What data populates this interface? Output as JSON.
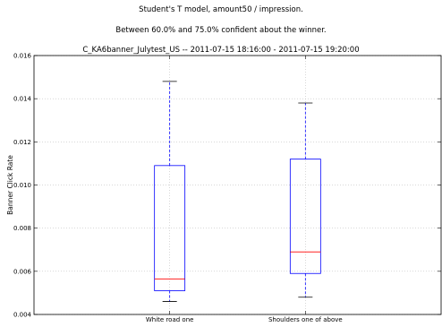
{
  "chart_data": {
    "type": "box",
    "title_lines": [
      "Student's T model, amount50 / impression.",
      "Between 60.0% and 75.0% confident about the winner.",
      "C_KA6banner_Julytest_US -- 2011-07-15 18:16:00 - 2011-07-15 19:20:00"
    ],
    "xlabel": "",
    "ylabel": "Banner Click Rate",
    "ylim": [
      0.004,
      0.016
    ],
    "yticks": [
      "0.004",
      "0.006",
      "0.008",
      "0.010",
      "0.012",
      "0.014",
      "0.016"
    ],
    "grid": true,
    "categories": [
      "White road one",
      "Shoulders one of above"
    ],
    "boxes": [
      {
        "label": "White road one",
        "whisker_low": 0.0046,
        "q1": 0.0051,
        "median": 0.00565,
        "q3": 0.0109,
        "whisker_high": 0.0148
      },
      {
        "label": "Shoulders one of above",
        "whisker_low": 0.0048,
        "q1": 0.0059,
        "median": 0.0069,
        "q3": 0.0112,
        "whisker_high": 0.0138
      }
    ],
    "colors": {
      "box": "#0000ff",
      "median": "#ff0000",
      "whisker": "#0000ff",
      "cap": "#000000",
      "grid": "#b0b0b0"
    }
  }
}
